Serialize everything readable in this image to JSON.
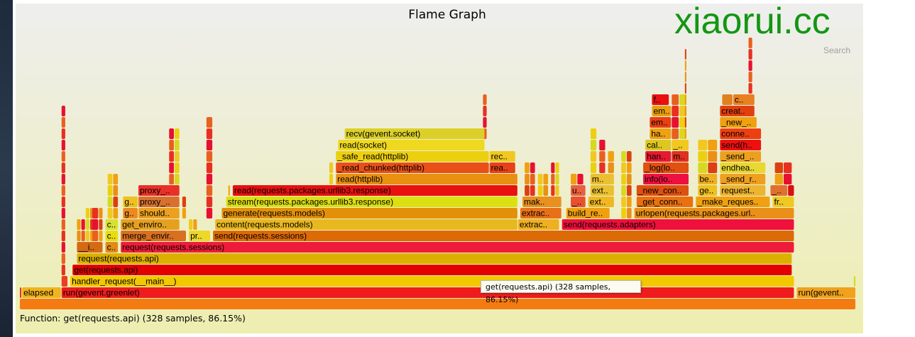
{
  "title": "Flame Graph",
  "search_label": "Search",
  "watermark": "xiaorui.cc",
  "details_prefix": "Function: ",
  "details_text": "get(requests.api) (328 samples, 86.15%)",
  "tooltip": "get(requests.api) (328 samples, 86.15%)",
  "chart_data": {
    "type": "flamegraph",
    "title": "Flame Graph",
    "total_samples": 381,
    "frame_fields": [
      "level",
      "start_sample",
      "samples",
      "label",
      "color"
    ],
    "frames": [
      [
        0,
        0,
        381,
        "",
        "#f47a12"
      ],
      [
        1,
        0,
        1,
        "",
        "#e83020"
      ],
      [
        1,
        1,
        18,
        "elapsed",
        "#f0b41c"
      ],
      [
        1,
        19,
        334,
        "run(gevent.greenlet)",
        "#ee1c1c"
      ],
      [
        1,
        354,
        27,
        "run(gevent..",
        "#f0a21c"
      ],
      [
        2,
        19,
        3,
        "",
        "#e84020"
      ],
      [
        2,
        23,
        330,
        "handler_request(__main__)",
        "#f2c800"
      ],
      [
        3,
        24,
        328,
        "get(requests.api)",
        "#e20000"
      ],
      [
        4,
        26,
        326,
        "request(requests.api)",
        "#dcb000"
      ],
      [
        5,
        26,
        12,
        "__i..",
        "#d46a14"
      ],
      [
        5,
        39,
        6,
        "c..",
        "#e08a18"
      ],
      [
        5,
        46,
        307,
        "request(requests.sessions)",
        "#ee1c3a"
      ],
      [
        6,
        39,
        6,
        "c..",
        "#e8dc10"
      ],
      [
        6,
        46,
        30,
        "merge_envir..",
        "#d87020"
      ],
      [
        6,
        77,
        10,
        "pr..",
        "#ecd828"
      ],
      [
        6,
        88,
        265,
        "send(requests.sessions)",
        "#dc6a06"
      ],
      [
        7,
        39,
        6,
        "c..",
        "#d8e030"
      ],
      [
        7,
        46,
        27,
        "get_enviro..",
        "#e6a020"
      ],
      [
        7,
        89,
        138,
        "content(requests.models)",
        "#e8b820"
      ],
      [
        7,
        227,
        19,
        "extrac..",
        "#eeb020"
      ],
      [
        7,
        247,
        106,
        "send(requests.adapters)",
        "#f0103c"
      ],
      [
        8,
        47,
        7,
        "g..",
        "#ec8a20"
      ],
      [
        8,
        54,
        19,
        "should..",
        "#eca020"
      ],
      [
        8,
        92,
        135,
        "generate(requests.models)",
        "#e2900a"
      ],
      [
        8,
        228,
        19,
        "extrac..",
        "#e87018"
      ],
      [
        8,
        249,
        20,
        "build_re..",
        "#eea010"
      ],
      [
        8,
        280,
        73,
        "urlopen(requests.packages.url..",
        "#e89018"
      ],
      [
        9,
        47,
        7,
        "g..",
        "#f0c020"
      ],
      [
        9,
        54,
        19,
        "proxy_..",
        "#d87030"
      ],
      [
        9,
        94,
        133,
        "stream(requests.packages.urllib3.response)",
        "#dce010"
      ],
      [
        9,
        229,
        18,
        "mak..",
        "#e89020"
      ],
      [
        9,
        251,
        7,
        "_..",
        "#e85030"
      ],
      [
        9,
        259,
        12,
        "ext..",
        "#f0b820"
      ],
      [
        9,
        281,
        26,
        "_get_conn..",
        "#e87010"
      ],
      [
        9,
        308,
        34,
        "_make_reques..",
        "#f0a010"
      ],
      [
        9,
        343,
        10,
        "fr..",
        "#f0c820"
      ],
      [
        10,
        54,
        19,
        "proxy_..",
        "#e83028"
      ],
      [
        10,
        97,
        130,
        "read(requests.packages.urllib3.response)",
        "#e81010"
      ],
      [
        10,
        251,
        7,
        "u..",
        "#e86040"
      ],
      [
        10,
        260,
        11,
        "ext..",
        "#e8c030"
      ],
      [
        10,
        281,
        24,
        "_new_con..",
        "#dc5010"
      ],
      [
        10,
        309,
        9,
        "ge..",
        "#eec020"
      ],
      [
        10,
        319,
        21,
        "request..",
        "#ecb430"
      ],
      [
        10,
        342,
        8,
        "_..",
        "#e07030"
      ],
      [
        10,
        350,
        3,
        "",
        "#d81010"
      ],
      [
        11,
        144,
        83,
        "read(httplib)",
        "#e89010"
      ],
      [
        11,
        260,
        11,
        "m..",
        "#eac030"
      ],
      [
        11,
        284,
        21,
        "info(lo..",
        "#ee1040"
      ],
      [
        11,
        309,
        9,
        "be..",
        "#eeb020"
      ],
      [
        11,
        319,
        21,
        "_send_r..",
        "#eea020"
      ],
      [
        12,
        144,
        70,
        "_read_chunked(httplib)",
        "#e85018"
      ],
      [
        12,
        214,
        12,
        "rea..",
        "#e84018"
      ],
      [
        12,
        284,
        21,
        "_log(lo..",
        "#e25010"
      ],
      [
        12,
        319,
        21,
        "endhea..",
        "#e8d830"
      ],
      [
        13,
        144,
        70,
        "_safe_read(httplib)",
        "#ecd010"
      ],
      [
        13,
        214,
        12,
        "rec..",
        "#f0c820"
      ],
      [
        13,
        285,
        12,
        "han..",
        "#e81830"
      ],
      [
        13,
        297,
        8,
        "m..",
        "#e03020"
      ],
      [
        13,
        319,
        19,
        "_send_..",
        "#eca020"
      ],
      [
        14,
        145,
        67,
        "read(socket)",
        "#eed820"
      ],
      [
        14,
        285,
        12,
        "cal..",
        "#dcc820"
      ],
      [
        14,
        297,
        8,
        "_..",
        "#f0c820"
      ],
      [
        14,
        319,
        19,
        "send(h..",
        "#ee1010"
      ],
      [
        15,
        148,
        64,
        "recv(gevent.socket)",
        "#dcd028"
      ],
      [
        15,
        287,
        10,
        "ha..",
        "#f0a010"
      ],
      [
        15,
        319,
        19,
        "conne..",
        "#ec4010"
      ],
      [
        16,
        287,
        10,
        "em..",
        "#e84010"
      ],
      [
        16,
        319,
        17,
        "_new_..",
        "#f0a010"
      ],
      [
        17,
        288,
        9,
        "em..",
        "#e8a010"
      ],
      [
        17,
        319,
        16,
        "creat..",
        "#e04010"
      ],
      [
        18,
        288,
        8,
        "f..",
        "#e81010"
      ],
      [
        18,
        320,
        5,
        "",
        "#e08020"
      ],
      [
        18,
        325,
        10,
        "c..",
        "#e88020"
      ]
    ],
    "unlabeled_stack_fields": [
      "start_sample",
      "samples",
      "from_level",
      "to_level"
    ],
    "unlabeled_stacks": [
      [
        19,
        2,
        3,
        18
      ],
      [
        26,
        4,
        6,
        8
      ],
      [
        30,
        4,
        6,
        9
      ],
      [
        33,
        3,
        6,
        9
      ],
      [
        36,
        2,
        6,
        9
      ],
      [
        40,
        5,
        8,
        12
      ],
      [
        68,
        5,
        11,
        16
      ],
      [
        74,
        2,
        8,
        10
      ],
      [
        77,
        4,
        7,
        8
      ],
      [
        85,
        3,
        8,
        17
      ],
      [
        95,
        1,
        10,
        11
      ],
      [
        141,
        2,
        11,
        13
      ],
      [
        211,
        2,
        15,
        19
      ],
      [
        230,
        5,
        10,
        13
      ],
      [
        236,
        5,
        10,
        12
      ],
      [
        242,
        4,
        10,
        13
      ],
      [
        251,
        6,
        11,
        12
      ],
      [
        260,
        3,
        12,
        16
      ],
      [
        264,
        3,
        12,
        15
      ],
      [
        268,
        3,
        12,
        14
      ],
      [
        274,
        5,
        8,
        14
      ],
      [
        297,
        7,
        15,
        19
      ],
      [
        303,
        1,
        15,
        23
      ],
      [
        309,
        9,
        12,
        15
      ],
      [
        332,
        2,
        18,
        24
      ],
      [
        344,
        8,
        11,
        13
      ],
      [
        380,
        1,
        2,
        3
      ]
    ],
    "palette": [
      "#e83020",
      "#f0a010",
      "#ecd010",
      "#e86020",
      "#dc4010",
      "#f0c820",
      "#e81030",
      "#e89018",
      "#d8d820"
    ]
  }
}
